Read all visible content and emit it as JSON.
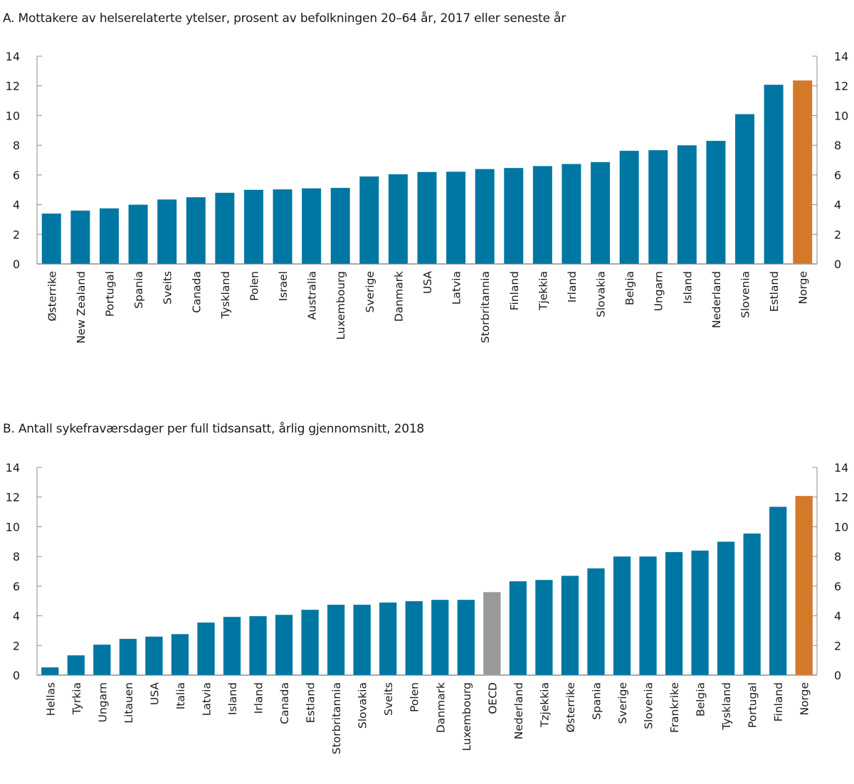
{
  "chart_data": [
    {
      "id": "A",
      "type": "bar",
      "title": "A.  Mottakere av helserelaterte ytelser, prosent av befolkningen 20–64 år, 2017 eller seneste år",
      "xlabel": "",
      "ylabel": "",
      "ylim": [
        0,
        14
      ],
      "yticks": [
        0,
        2,
        4,
        6,
        8,
        10,
        12,
        14
      ],
      "axes": "left-and-right",
      "grid": false,
      "legend": "none",
      "categories": [
        "Østerrike",
        "New Zealand",
        "Portugal",
        "Spania",
        "Sveits",
        "Canada",
        "Tyskland",
        "Polen",
        "Israel",
        "Australia",
        "Luxembourg",
        "Sverige",
        "Danmark",
        "USA",
        "Latvia",
        "Storbritannia",
        "Finland",
        "Tjekkia",
        "Irland",
        "Slovakia",
        "Belgia",
        "Ungarn",
        "Island",
        "Nederland",
        "Slovenia",
        "Estland",
        "Norge"
      ],
      "values": [
        3.4,
        3.6,
        3.75,
        4.0,
        4.35,
        4.5,
        4.8,
        5.0,
        5.03,
        5.1,
        5.13,
        5.9,
        6.05,
        6.2,
        6.22,
        6.4,
        6.47,
        6.6,
        6.74,
        6.87,
        7.63,
        7.67,
        8.0,
        8.3,
        10.1,
        12.08,
        12.37
      ],
      "highlight": {
        "Norge": "#d4792a"
      },
      "bar_color": "#0077a3"
    },
    {
      "id": "B",
      "type": "bar",
      "title": "B.  Antall sykefraværsdager per full tidsansatt, årlig gjennomsnitt, 2018",
      "xlabel": "",
      "ylabel": "",
      "ylim": [
        0,
        14
      ],
      "yticks": [
        0,
        2,
        4,
        6,
        8,
        10,
        12,
        14
      ],
      "axes": "left-and-right",
      "grid": false,
      "legend": "none",
      "categories": [
        "Hellas",
        "Tyrkia",
        "Ungarn",
        "Litauen",
        "USA",
        "Italia",
        "Latvia",
        "Island",
        "Irland",
        "Canada",
        "Estland",
        "Storbritannia",
        "Slovakia",
        "Sveits",
        "Polen",
        "Danmark",
        "Luxembourg",
        "OECD",
        "Nederland",
        "Tzjekkia",
        "Østerrike",
        "Spania",
        "Sverige",
        "Slovenia",
        "Frankrike",
        "Belgia",
        "Tyskland",
        "Portugal",
        "Finland",
        "Norge"
      ],
      "values": [
        0.53,
        1.34,
        2.06,
        2.45,
        2.6,
        2.77,
        3.55,
        3.93,
        3.98,
        4.07,
        4.41,
        4.75,
        4.75,
        4.9,
        4.99,
        5.08,
        5.08,
        5.6,
        6.33,
        6.42,
        6.7,
        7.2,
        8.0,
        8.0,
        8.3,
        8.4,
        9.0,
        9.55,
        11.35,
        12.08
      ],
      "highlight": {
        "OECD": "#999999",
        "Norge": "#d4792a"
      },
      "bar_color": "#0077a3"
    }
  ]
}
